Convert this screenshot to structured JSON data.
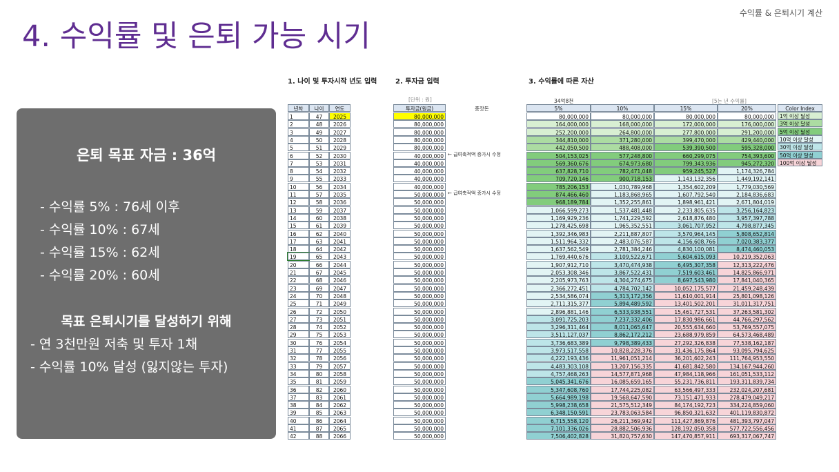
{
  "header": {
    "title": "4. 수익률 및 은퇴 가능 시기",
    "tag": "수익률 & 은퇴시기 계산"
  },
  "panel": {
    "goal": "은퇴 목표 자금 : 36억",
    "items": [
      "- 수익률   5% : 76세 이후",
      "- 수익률 10% : 67세",
      "- 수익률 15% : 62세",
      "- 수익률 20% : 60세"
    ],
    "subheading": "목표 은퇴시기를 달성하기 위해",
    "actions": [
      "- 연 3천만원 저축 및 투자 1채",
      "- 수익률 10% 달성 (잃지않는 투자)"
    ]
  },
  "sheet": {
    "section_titles": [
      "1. 나이 및 투자시작 년도 입력",
      "2. 투자금 입력",
      "3. 수익률에 따른 자산"
    ],
    "unit": "[단위 : 원]",
    "seed": "종잣돈",
    "target": "34억8천",
    "rate_note": "[5는 년 수익률]",
    "columns": [
      "년차",
      "나이",
      "연도",
      "투자금(원금)",
      "5%",
      "10%",
      "15%",
      "20%"
    ],
    "notes": {
      "5": "← 급여축적액 증가시 수정",
      "10": "← 급여축적액 증가시 수정"
    },
    "legend_title": "Color Index",
    "legend": [
      "1억 이상 달성",
      "3억 이상 달성",
      "5억 이상 달성",
      "10억 이상 달성",
      "30억 이상 달성",
      "50억 이상 달성",
      "100억 이상 달성"
    ],
    "rows": [
      [
        1,
        47,
        2025,
        "80,000,000",
        "80,000,000",
        "80,000,000",
        "80,000,000",
        "80,000,000"
      ],
      [
        2,
        48,
        2026,
        "80,000,000",
        "164,000,000",
        "168,000,000",
        "172,000,000",
        "176,000,000"
      ],
      [
        3,
        49,
        2027,
        "80,000,000",
        "252,200,000",
        "264,800,000",
        "277,800,000",
        "291,200,000"
      ],
      [
        4,
        50,
        2028,
        "80,000,000",
        "344,810,000",
        "371,280,000",
        "399,470,000",
        "429,440,000"
      ],
      [
        5,
        51,
        2029,
        "80,000,000",
        "442,050,500",
        "488,408,000",
        "539,390,500",
        "595,328,000"
      ],
      [
        6,
        52,
        2030,
        "40,000,000",
        "504,153,025",
        "577,248,800",
        "660,299,075",
        "754,393,600"
      ],
      [
        7,
        53,
        2031,
        "40,000,000",
        "569,360,676",
        "674,973,680",
        "799,343,936",
        "945,272,320"
      ],
      [
        8,
        54,
        2032,
        "40,000,000",
        "637,828,710",
        "782,471,048",
        "959,245,527",
        "1,174,326,784"
      ],
      [
        9,
        55,
        2033,
        "40,000,000",
        "709,720,146",
        "900,718,153",
        "1,143,132,356",
        "1,449,192,141"
      ],
      [
        10,
        56,
        2034,
        "40,000,000",
        "785,206,153",
        "1,030,789,968",
        "1,354,602,209",
        "1,779,030,569"
      ],
      [
        11,
        57,
        2035,
        "50,000,000",
        "874,466,460",
        "1,183,868,965",
        "1,607,792,540",
        "2,184,836,683"
      ],
      [
        12,
        58,
        2036,
        "50,000,000",
        "968,189,784",
        "1,352,255,861",
        "1,898,961,421",
        "2,671,804,019"
      ],
      [
        13,
        59,
        2037,
        "50,000,000",
        "1,066,599,273",
        "1,537,481,448",
        "2,233,805,635",
        "3,256,164,823"
      ],
      [
        14,
        60,
        2038,
        "50,000,000",
        "1,169,929,236",
        "1,741,229,592",
        "2,618,876,480",
        "3,957,397,788"
      ],
      [
        15,
        61,
        2039,
        "50,000,000",
        "1,278,425,698",
        "1,965,352,551",
        "3,061,707,952",
        "4,798,877,345"
      ],
      [
        16,
        62,
        2040,
        "50,000,000",
        "1,392,346,983",
        "2,211,887,807",
        "3,570,964,145",
        "5,808,652,814"
      ],
      [
        17,
        63,
        2041,
        "50,000,000",
        "1,511,964,332",
        "2,483,076,587",
        "4,156,608,766",
        "7,020,383,377"
      ],
      [
        18,
        64,
        2042,
        "50,000,000",
        "1,637,562,549",
        "2,781,384,246",
        "4,830,100,081",
        "8,474,460,053"
      ],
      [
        19,
        65,
        2043,
        "50,000,000",
        "1,769,440,676",
        "3,109,522,671",
        "5,604,615,093",
        "10,219,352,063"
      ],
      [
        20,
        66,
        2044,
        "50,000,000",
        "1,907,912,710",
        "3,470,474,938",
        "6,495,307,358",
        "12,313,222,476"
      ],
      [
        21,
        67,
        2045,
        "50,000,000",
        "2,053,308,346",
        "3,867,522,431",
        "7,519,603,461",
        "14,825,866,971"
      ],
      [
        22,
        68,
        2046,
        "50,000,000",
        "2,205,973,763",
        "4,304,274,675",
        "8,697,543,980",
        "17,841,040,365"
      ],
      [
        23,
        69,
        2047,
        "50,000,000",
        "2,366,272,451",
        "4,784,702,142",
        "10,052,175,577",
        "21,459,248,439"
      ],
      [
        24,
        70,
        2048,
        "50,000,000",
        "2,534,586,074",
        "5,313,172,356",
        "11,610,001,914",
        "25,801,098,126"
      ],
      [
        25,
        71,
        2049,
        "50,000,000",
        "2,711,315,377",
        "5,894,489,592",
        "13,401,502,201",
        "31,011,317,751"
      ],
      [
        26,
        72,
        2050,
        "50,000,000",
        "2,896,881,146",
        "6,533,938,551",
        "15,461,727,531",
        "37,263,581,302"
      ],
      [
        27,
        73,
        2051,
        "50,000,000",
        "3,091,725,203",
        "7,237,332,406",
        "17,830,986,661",
        "44,766,297,562"
      ],
      [
        28,
        74,
        2052,
        "50,000,000",
        "3,296,311,464",
        "8,011,065,647",
        "20,555,634,660",
        "53,769,557,075"
      ],
      [
        29,
        75,
        2053,
        "50,000,000",
        "3,511,127,037",
        "8,862,172,212",
        "23,688,979,859",
        "64,573,468,489"
      ],
      [
        30,
        76,
        2054,
        "50,000,000",
        "3,736,683,389",
        "9,798,389,433",
        "27,292,326,838",
        "77,538,162,187"
      ],
      [
        31,
        77,
        2055,
        "50,000,000",
        "3,973,517,558",
        "10,828,228,376",
        "31,436,175,864",
        "93,095,794,625"
      ],
      [
        32,
        78,
        2056,
        "50,000,000",
        "4,222,193,436",
        "11,961,051,214",
        "36,201,602,243",
        "111,764,953,550"
      ],
      [
        33,
        79,
        2057,
        "50,000,000",
        "4,483,303,108",
        "13,207,156,335",
        "41,681,842,580",
        "134,167,944,260"
      ],
      [
        34,
        80,
        2058,
        "50,000,000",
        "4,757,468,263",
        "14,577,871,968",
        "47,984,118,966",
        "161,051,533,112"
      ],
      [
        35,
        81,
        2059,
        "50,000,000",
        "5,045,341,676",
        "16,085,659,165",
        "55,231,736,811",
        "193,311,839,734"
      ],
      [
        36,
        82,
        2060,
        "50,000,000",
        "5,347,608,760",
        "17,744,225,082",
        "63,566,497,333",
        "232,024,207,681"
      ],
      [
        37,
        83,
        2061,
        "50,000,000",
        "5,664,989,198",
        "19,568,647,590",
        "73,151,471,933",
        "278,479,049,217"
      ],
      [
        38,
        84,
        2062,
        "50,000,000",
        "5,998,238,658",
        "21,575,512,349",
        "84,174,192,723",
        "334,224,859,060"
      ],
      [
        39,
        85,
        2063,
        "50,000,000",
        "6,348,150,591",
        "23,783,063,584",
        "96,850,321,632",
        "401,119,830,872"
      ],
      [
        40,
        86,
        2064,
        "50,000,000",
        "6,715,558,120",
        "26,211,369,942",
        "111,427,869,876",
        "481,393,797,047"
      ],
      [
        41,
        87,
        2065,
        "50,000,000",
        "7,101,336,026",
        "28,882,506,936",
        "128,192,050,358",
        "577,722,556,456"
      ],
      [
        42,
        88,
        2066,
        "50,000,000",
        "7,506,402,828",
        "31,820,757,630",
        "147,470,857,911",
        "693,317,067,747"
      ]
    ]
  }
}
